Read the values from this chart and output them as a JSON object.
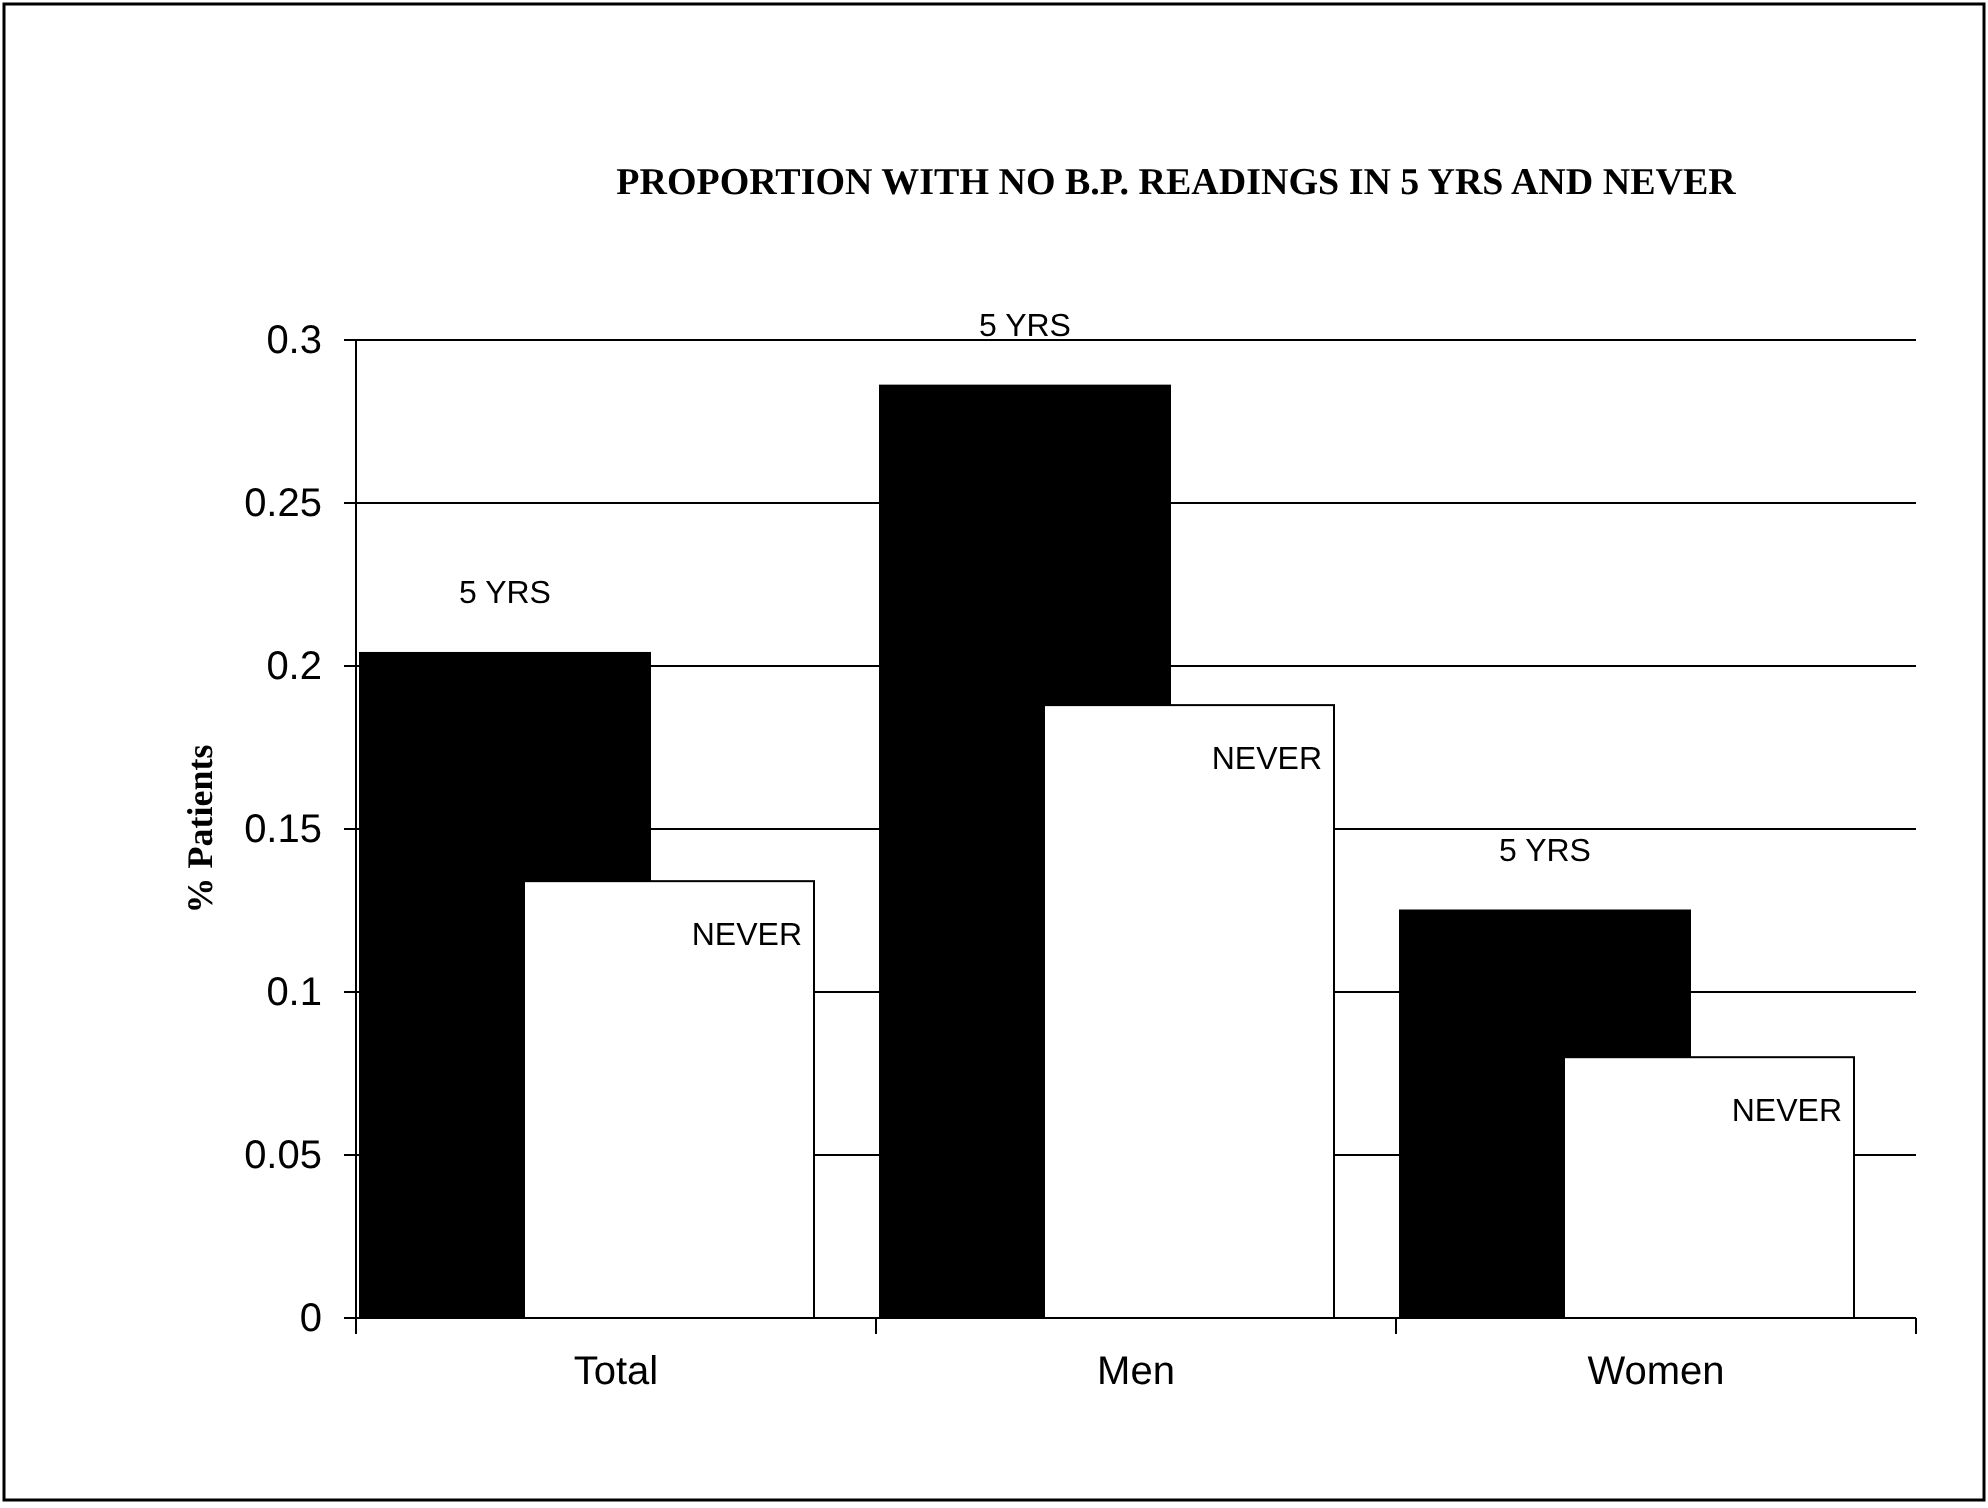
{
  "chart_data": {
    "type": "bar",
    "title": "PROPORTION WITH NO B.P. READINGS IN 5 YRS AND NEVER",
    "ylabel": "% Patients",
    "categories": [
      "Total",
      "Men",
      "Women"
    ],
    "series": [
      {
        "name": "5 YRS",
        "color": "#000000",
        "values": [
          0.204,
          0.286,
          0.125
        ]
      },
      {
        "name": "NEVER",
        "color": "#ffffff",
        "values": [
          0.134,
          0.188,
          0.08
        ]
      }
    ],
    "ylim": [
      0,
      0.3
    ],
    "yticks": [
      0,
      0.05,
      0.1,
      0.15,
      0.2,
      0.25,
      0.3
    ],
    "grid": "y"
  }
}
